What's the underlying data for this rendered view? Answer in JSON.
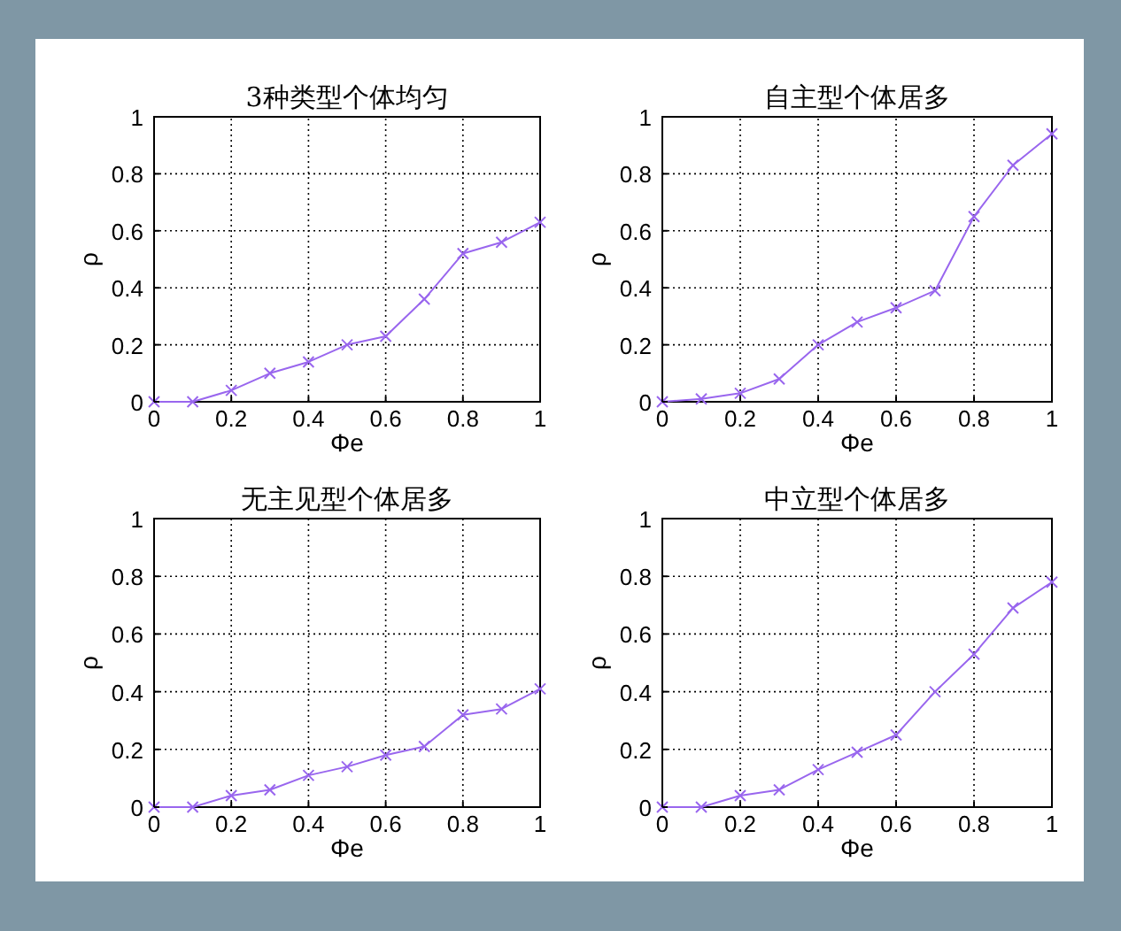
{
  "chart_data": [
    {
      "type": "line",
      "title": "3种类型个体均匀",
      "xlabel": "Φe",
      "ylabel": "ρ",
      "x": [
        0,
        0.1,
        0.2,
        0.3,
        0.4,
        0.5,
        0.6,
        0.7,
        0.8,
        0.9,
        1
      ],
      "series": [
        {
          "color": "#9966ee",
          "values": [
            0,
            0,
            0.04,
            0.1,
            0.14,
            0.2,
            0.23,
            0.36,
            0.52,
            0.56,
            0.63
          ]
        }
      ],
      "xlim": [
        0,
        1
      ],
      "ylim": [
        0,
        1
      ],
      "xticks": [
        0,
        0.2,
        0.4,
        0.6,
        0.8,
        1
      ],
      "yticks": [
        0,
        0.2,
        0.4,
        0.6,
        0.8,
        1
      ],
      "grid": true,
      "marker": "cross",
      "line_style": "solid"
    },
    {
      "type": "line",
      "title": "自主型个体居多",
      "xlabel": "Φe",
      "ylabel": "ρ",
      "x": [
        0,
        0.1,
        0.2,
        0.3,
        0.4,
        0.5,
        0.6,
        0.7,
        0.8,
        0.9,
        1
      ],
      "series": [
        {
          "color": "#9966ee",
          "values": [
            0,
            0.01,
            0.03,
            0.08,
            0.2,
            0.28,
            0.33,
            0.39,
            0.65,
            0.83,
            0.94
          ]
        }
      ],
      "xlim": [
        0,
        1
      ],
      "ylim": [
        0,
        1
      ],
      "xticks": [
        0,
        0.2,
        0.4,
        0.6,
        0.8,
        1
      ],
      "yticks": [
        0,
        0.2,
        0.4,
        0.6,
        0.8,
        1
      ],
      "grid": true,
      "marker": "cross",
      "line_style": "solid"
    },
    {
      "type": "line",
      "title": "无主见型个体居多",
      "xlabel": "Φe",
      "ylabel": "ρ",
      "x": [
        0,
        0.1,
        0.2,
        0.3,
        0.4,
        0.5,
        0.6,
        0.7,
        0.8,
        0.9,
        1
      ],
      "series": [
        {
          "color": "#9966ee",
          "values": [
            0,
            0,
            0.04,
            0.06,
            0.11,
            0.14,
            0.18,
            0.21,
            0.32,
            0.34,
            0.41
          ]
        }
      ],
      "xlim": [
        0,
        1
      ],
      "ylim": [
        0,
        1
      ],
      "xticks": [
        0,
        0.2,
        0.4,
        0.6,
        0.8,
        1
      ],
      "yticks": [
        0,
        0.2,
        0.4,
        0.6,
        0.8,
        1
      ],
      "grid": true,
      "marker": "cross",
      "line_style": "solid"
    },
    {
      "type": "line",
      "title": "中立型个体居多",
      "xlabel": "Φe",
      "ylabel": "ρ",
      "x": [
        0,
        0.1,
        0.2,
        0.3,
        0.4,
        0.5,
        0.6,
        0.7,
        0.8,
        0.9,
        1
      ],
      "series": [
        {
          "color": "#9966ee",
          "values": [
            0,
            0,
            0.04,
            0.06,
            0.13,
            0.19,
            0.25,
            0.4,
            0.53,
            0.69,
            0.78
          ]
        }
      ],
      "xlim": [
        0,
        1
      ],
      "ylim": [
        0,
        1
      ],
      "xticks": [
        0,
        0.2,
        0.4,
        0.6,
        0.8,
        1
      ],
      "yticks": [
        0,
        0.2,
        0.4,
        0.6,
        0.8,
        1
      ],
      "grid": true,
      "marker": "cross",
      "line_style": "solid"
    }
  ]
}
